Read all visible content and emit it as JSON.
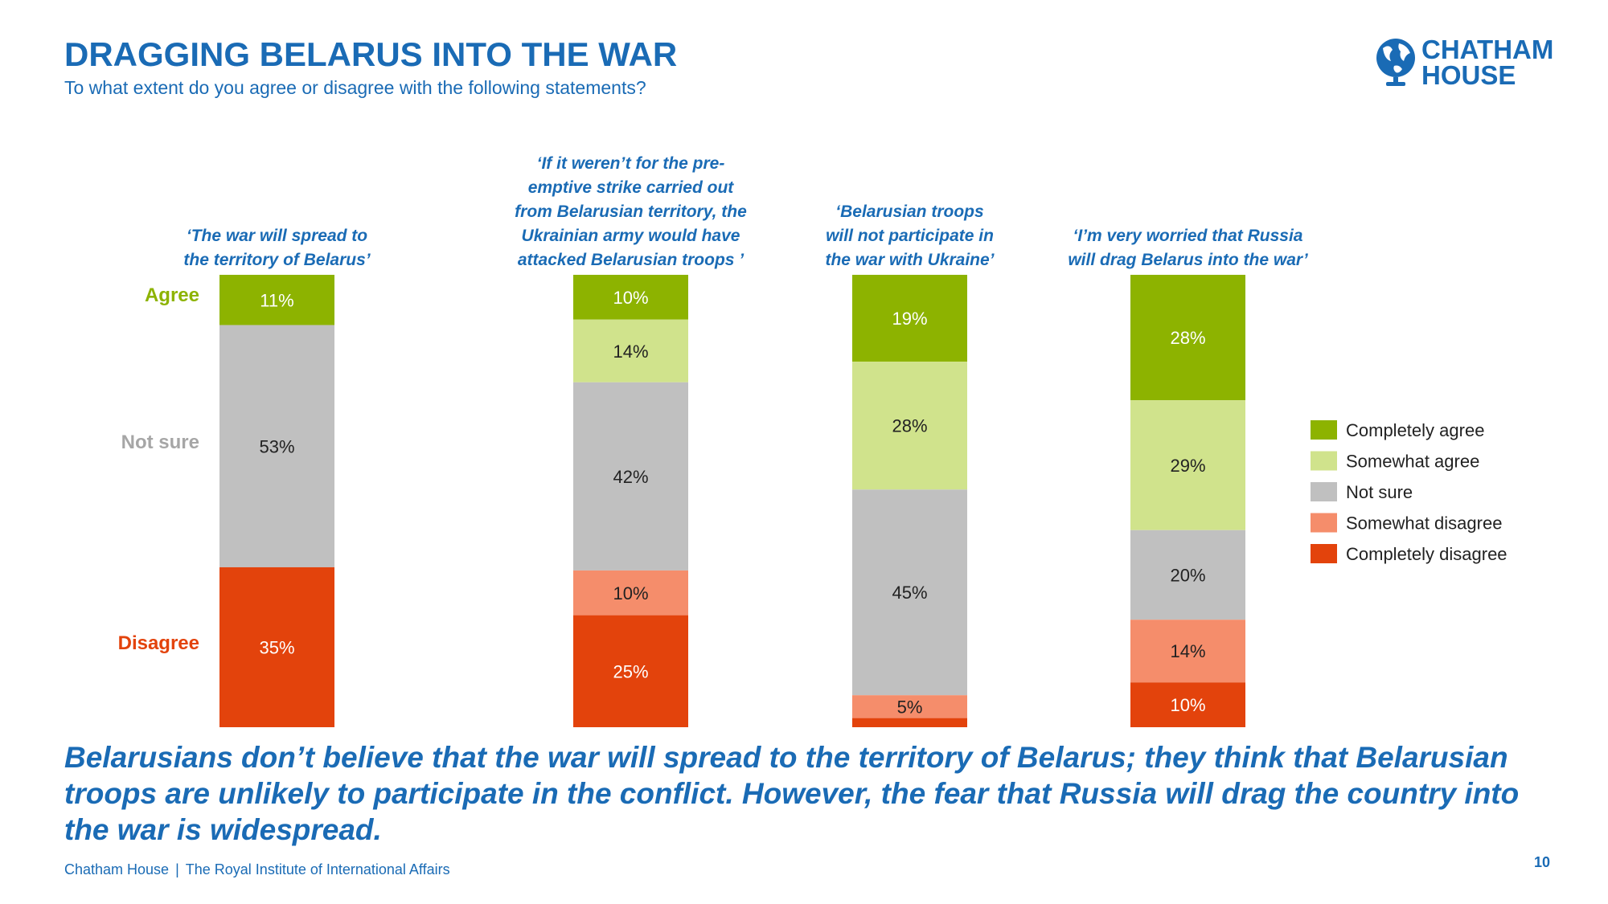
{
  "header": {
    "title": "DRAGGING BELARUS INTO THE WAR",
    "subtitle": "To what extent do you agree or disagree with the following statements?"
  },
  "logo": {
    "line1": "CHATHAM",
    "line2": "HOUSE",
    "icon": "globe-icon"
  },
  "chart_data": {
    "type": "bar",
    "stacked": true,
    "orientation": "vertical",
    "categories": [
      [
        "‘The war will spread to",
        "the territory of Belarus’"
      ],
      [
        "‘If it weren’t for the pre-",
        "emptive strike carried out",
        "from Belarusian territory, the",
        "Ukrainian army would have",
        "attacked Belarusian troops ’"
      ],
      [
        "‘Belarusian troops",
        "will not participate in",
        "the war with Ukraine’"
      ],
      [
        "‘I’m very worried that Russia",
        "will drag Belarus into the war’"
      ]
    ],
    "series": [
      {
        "name": "Completely agree",
        "color": "#8db300",
        "values": [
          11,
          10,
          19,
          28
        ],
        "labels": [
          "11%",
          "10%",
          "19%",
          "28%"
        ]
      },
      {
        "name": "Somewhat agree",
        "color": "#d0e38c",
        "values": [
          0,
          14,
          28,
          29
        ],
        "labels": [
          "",
          "14%",
          "28%",
          "29%"
        ]
      },
      {
        "name": "Not sure",
        "color": "#c0c0c0",
        "values": [
          53,
          42,
          45,
          20
        ],
        "labels": [
          "53%",
          "42%",
          "45%",
          "20%"
        ]
      },
      {
        "name": "Somewhat disagree",
        "color": "#f58d6b",
        "values": [
          0,
          10,
          5,
          14
        ],
        "labels": [
          "",
          "10%",
          "5%",
          "14%"
        ]
      },
      {
        "name": "Completely disagree",
        "color": "#e3430c",
        "values": [
          35,
          25,
          2,
          10
        ],
        "labels": [
          "35%",
          "25%",
          "",
          "10%"
        ]
      }
    ],
    "side_labels": [
      {
        "text": "Agree",
        "color": "#8db300"
      },
      {
        "text": "Not sure",
        "color": "#a6a6a6"
      },
      {
        "text": "Disagree",
        "color": "#e3430c"
      }
    ],
    "ylim": [
      0,
      100
    ],
    "legend_position": "right"
  },
  "conclusion": "Belarusians don’t believe that the war will spread to the territory of Belarus; they think that Belarusian troops are unlikely to participate in the conflict. However, the fear that Russia will drag the country into the war is widespread.",
  "footer": {
    "org": "Chatham House",
    "separator": "|",
    "tagline": "The Royal Institute of International Affairs",
    "page": "10"
  }
}
